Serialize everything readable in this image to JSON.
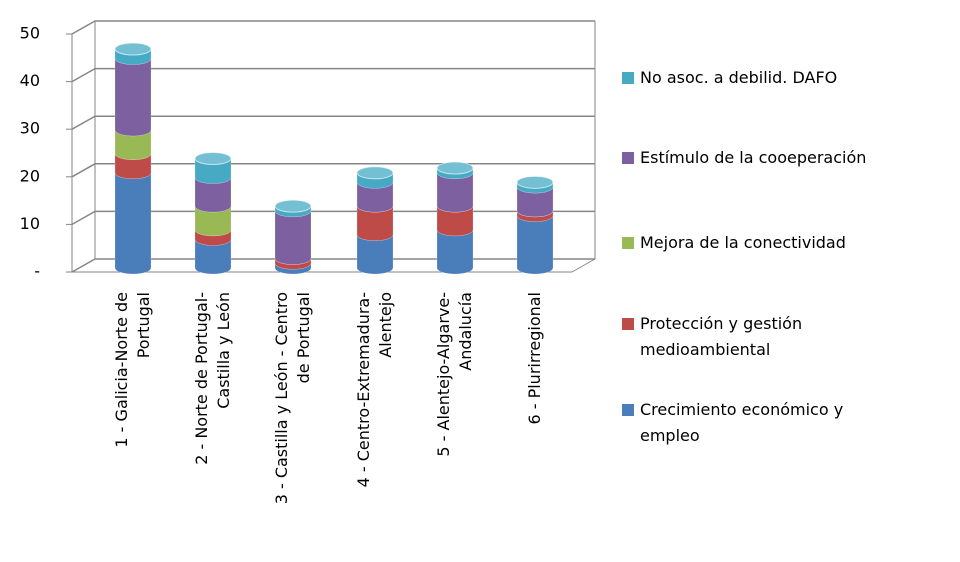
{
  "chart_data": {
    "type": "bar3d-stacked-cylinder",
    "categories": [
      "1 - Galicia-Norte de\nPortugal",
      "2 - Norte de Portugal-\nCastilla y León",
      "3 - Castilla  y León - Centro\nde Portugal",
      "4 - Centro-Extremadura-\nAlentejo",
      "5 - Alentejo-Algarve-\nAndalucía",
      "6 - Plurirregional"
    ],
    "series": [
      {
        "name": "Crecimiento económico y\nempleo",
        "color": "#4a7ebb",
        "values": [
          20,
          6,
          1,
          7,
          8,
          11
        ]
      },
      {
        "name": "Protección y gestión\nmedioambiental",
        "color": "#be4b48",
        "values": [
          4,
          2,
          1,
          6,
          5,
          1
        ]
      },
      {
        "name": "Mejora de la conectividad",
        "color": "#98b954",
        "values": [
          5,
          5,
          0,
          0,
          0,
          0
        ]
      },
      {
        "name": "Estímulo de la cooeperación",
        "color": "#7d60a0",
        "values": [
          15,
          6,
          10,
          5,
          7,
          5
        ]
      },
      {
        "name": "No asoc. a debilid. DAFO",
        "color": "#46aac5",
        "values": [
          2,
          4,
          1,
          2,
          1,
          1
        ]
      }
    ],
    "ylim": [
      0,
      50
    ],
    "yticks": [
      {
        "value": 0,
        "label": "-"
      },
      10,
      20,
      30,
      40,
      50
    ],
    "grid": true
  }
}
